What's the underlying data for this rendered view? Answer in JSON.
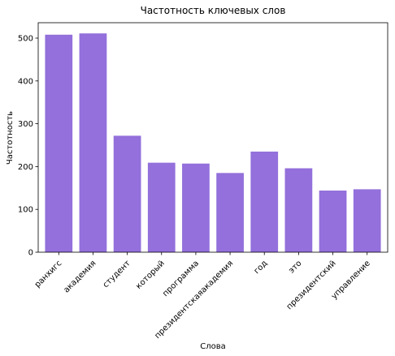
{
  "chart_data": {
    "type": "bar",
    "title": "Частотность ключевых слов",
    "xlabel": "Слова",
    "ylabel": "Частотность",
    "categories": [
      "ранхигс",
      "академия",
      "студент",
      "который",
      "программа",
      "президентскаяакадемия",
      "год",
      "это",
      "президентский",
      "управление"
    ],
    "values": [
      508,
      511,
      272,
      209,
      207,
      185,
      235,
      196,
      144,
      147
    ],
    "ylim": [
      0,
      536
    ],
    "yticks": [
      0,
      100,
      200,
      300,
      400,
      500
    ],
    "bar_color": "#9370DB",
    "grid": false,
    "legend": false
  }
}
